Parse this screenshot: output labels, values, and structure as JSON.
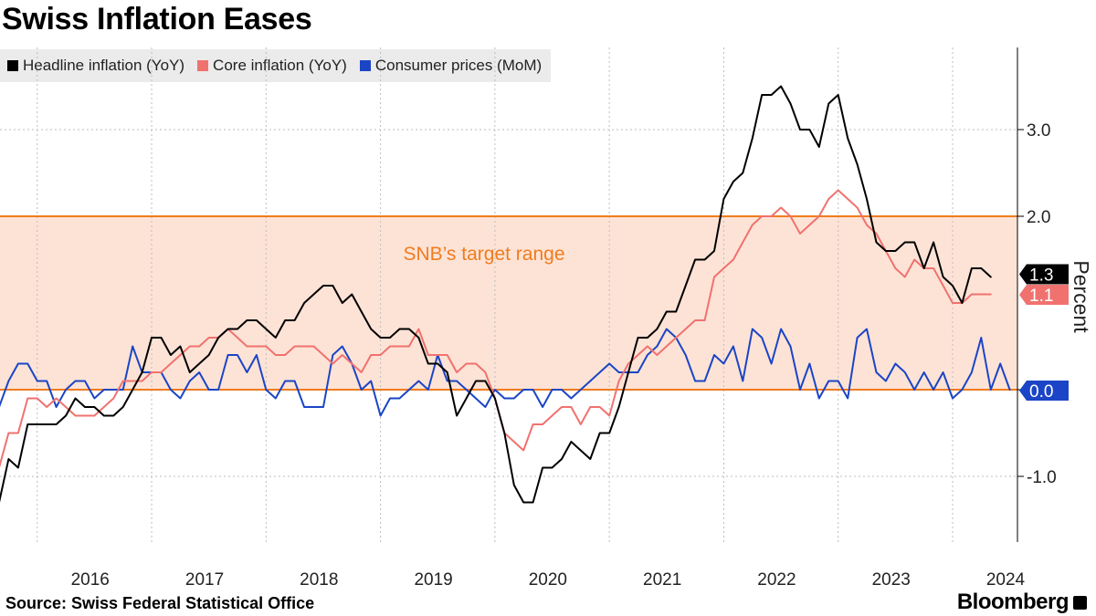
{
  "title": "Swiss Inflation Eases",
  "source": "Source: Swiss Federal Statistical Office",
  "brand": "Bloomberg",
  "chart_data": {
    "type": "line",
    "title": "Swiss Inflation Eases",
    "ylabel": "Percent",
    "xlabel": "",
    "ylim": [
      -1.6,
      4.0
    ],
    "yticks": [
      -1.0,
      2.0,
      3.0
    ],
    "ytick_labels": [
      "-1.0",
      "2.0",
      "3.0"
    ],
    "x_start": "2015-09",
    "x_end": "2024-06",
    "xticks": [
      {
        "date": "2016-01",
        "label": "2016"
      },
      {
        "date": "2017-01",
        "label": "2017"
      },
      {
        "date": "2018-01",
        "label": "2018"
      },
      {
        "date": "2019-01",
        "label": "2019"
      },
      {
        "date": "2020-01",
        "label": "2020"
      },
      {
        "date": "2021-01",
        "label": "2021"
      },
      {
        "date": "2022-01",
        "label": "2022"
      },
      {
        "date": "2023-01",
        "label": "2023"
      },
      {
        "date": "2024-01",
        "label": "2024"
      }
    ],
    "band": {
      "label": "SNB’s target range",
      "from": 0.0,
      "to": 2.0
    },
    "series": [
      {
        "name": "Headline inflation (YoY)",
        "color": "#000000",
        "end_label": "1.3",
        "values": [
          -1.3,
          -0.8,
          -0.9,
          -0.4,
          -0.4,
          -0.4,
          -0.4,
          -0.3,
          -0.1,
          -0.2,
          -0.2,
          -0.3,
          -0.3,
          -0.2,
          0.0,
          0.2,
          0.6,
          0.6,
          0.4,
          0.5,
          0.2,
          0.3,
          0.4,
          0.6,
          0.7,
          0.7,
          0.8,
          0.8,
          0.7,
          0.6,
          0.8,
          0.8,
          1.0,
          1.1,
          1.2,
          1.2,
          1.0,
          1.1,
          0.9,
          0.7,
          0.6,
          0.6,
          0.7,
          0.7,
          0.6,
          0.3,
          0.3,
          0.2,
          -0.3,
          -0.1,
          0.1,
          0.1,
          -0.1,
          -0.5,
          -1.1,
          -1.3,
          -1.3,
          -0.9,
          -0.9,
          -0.8,
          -0.6,
          -0.7,
          -0.8,
          -0.5,
          -0.5,
          -0.2,
          0.2,
          0.6,
          0.6,
          0.7,
          0.9,
          0.9,
          1.2,
          1.5,
          1.5,
          1.6,
          2.2,
          2.4,
          2.5,
          2.9,
          3.4,
          3.4,
          3.5,
          3.3,
          3.0,
          3.0,
          2.8,
          3.3,
          3.4,
          2.9,
          2.6,
          2.2,
          1.7,
          1.6,
          1.6,
          1.7,
          1.7,
          1.4,
          1.7,
          1.3,
          1.2,
          1.0,
          1.4,
          1.4,
          1.3
        ]
      },
      {
        "name": "Core inflation (YoY)",
        "color": "#f0726f",
        "end_label": "1.1",
        "values": [
          -0.9,
          -0.5,
          -0.5,
          -0.1,
          -0.1,
          -0.2,
          -0.1,
          -0.2,
          -0.3,
          -0.3,
          -0.3,
          -0.2,
          -0.1,
          0.1,
          0.1,
          0.1,
          0.2,
          0.2,
          0.3,
          0.4,
          0.5,
          0.5,
          0.6,
          0.6,
          0.7,
          0.6,
          0.5,
          0.5,
          0.5,
          0.4,
          0.4,
          0.5,
          0.5,
          0.5,
          0.4,
          0.3,
          0.4,
          0.3,
          0.2,
          0.4,
          0.4,
          0.5,
          0.5,
          0.5,
          0.7,
          0.4,
          0.4,
          0.4,
          0.2,
          0.3,
          0.3,
          0.2,
          -0.1,
          -0.5,
          -0.6,
          -0.7,
          -0.4,
          -0.4,
          -0.3,
          -0.2,
          -0.2,
          -0.4,
          -0.2,
          -0.2,
          -0.3,
          0.1,
          0.3,
          0.4,
          0.5,
          0.4,
          0.5,
          0.6,
          0.7,
          0.8,
          0.8,
          1.3,
          1.4,
          1.5,
          1.7,
          1.9,
          2.0,
          2.0,
          2.1,
          2.0,
          1.8,
          1.9,
          2.0,
          2.2,
          2.3,
          2.2,
          2.1,
          1.9,
          1.8,
          1.6,
          1.4,
          1.3,
          1.5,
          1.4,
          1.4,
          1.2,
          1.0,
          1.0,
          1.1,
          1.1,
          1.1
        ]
      },
      {
        "name": "Consumer prices (MoM)",
        "color": "#1b45c6",
        "end_label": "0.0",
        "values": [
          -0.2,
          0.1,
          0.3,
          0.3,
          0.1,
          0.1,
          -0.2,
          0.0,
          0.1,
          0.1,
          -0.1,
          0.0,
          0.0,
          0.0,
          0.5,
          0.2,
          0.2,
          0.2,
          0.0,
          -0.1,
          0.1,
          0.2,
          0.0,
          0.0,
          0.4,
          0.4,
          0.2,
          0.4,
          0.0,
          -0.1,
          0.1,
          0.1,
          -0.2,
          -0.2,
          -0.2,
          0.4,
          0.5,
          0.3,
          0.0,
          0.1,
          -0.3,
          -0.1,
          -0.1,
          0.0,
          0.1,
          0.0,
          0.4,
          0.1,
          0.1,
          0.0,
          -0.1,
          -0.2,
          0.0,
          -0.1,
          -0.1,
          0.0,
          0.0,
          -0.2,
          0.0,
          0.0,
          -0.1,
          0.0,
          0.1,
          0.2,
          0.3,
          0.2,
          0.2,
          0.2,
          0.4,
          0.5,
          0.7,
          0.6,
          0.4,
          0.1,
          0.1,
          0.4,
          0.3,
          0.5,
          0.1,
          0.7,
          0.6,
          0.3,
          0.7,
          0.5,
          0.0,
          0.3,
          -0.1,
          0.1,
          0.1,
          -0.1,
          0.6,
          0.7,
          0.2,
          0.1,
          0.3,
          0.2,
          0.0,
          0.2,
          0.0,
          0.2,
          -0.1,
          0.0,
          0.2,
          0.6,
          0.0,
          0.3,
          0.0
        ]
      }
    ]
  }
}
